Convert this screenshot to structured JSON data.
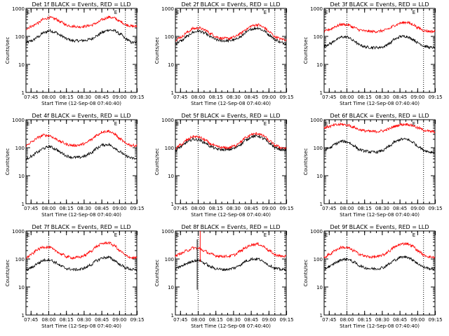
{
  "figure": {
    "xtick_labels": [
      "07:45",
      "08:00",
      "08:15",
      "08:30",
      "08:45",
      "09:00",
      "09:15"
    ],
    "ytick_labels": [
      "1",
      "10",
      "100",
      "1000"
    ],
    "ylabel": "Counts/sec",
    "xlabel": "Start Time (12-Sep-08 07:40:40)",
    "xlabel_panel8": "Start Time (12-Sep-08 07:40:40)",
    "marker_label": "E",
    "colors": {
      "events": "#000000",
      "lld": "#ff0000",
      "axes": "#000000",
      "background": "#ffffff"
    }
  },
  "chart_data": [
    {
      "type": "line",
      "title": "Det 1f BLACK = Events, RED = LLD",
      "xlim_min_after_start": [
        0,
        94
      ],
      "ylim": [
        1,
        1000
      ],
      "yscale": "log",
      "dotted_vlines_min": [
        19.3,
        84.3
      ],
      "x_min_after_start": [
        0,
        5,
        10,
        15,
        20,
        25,
        30,
        35,
        40,
        45,
        50,
        55,
        60,
        65,
        70,
        75,
        80,
        85,
        90,
        94
      ],
      "series": [
        {
          "values": [
            60,
            70,
            95,
            135,
            160,
            140,
            105,
            80,
            70,
            70,
            72,
            80,
            105,
            140,
            170,
            160,
            120,
            80,
            60,
            60
          ]
        },
        {
          "values": [
            190,
            230,
            300,
            410,
            470,
            420,
            320,
            250,
            230,
            220,
            230,
            250,
            300,
            400,
            490,
            450,
            340,
            260,
            230,
            230
          ]
        }
      ]
    },
    {
      "type": "line",
      "title": "Det 2f BLACK = Events, RED = LLD",
      "xlim_min_after_start": [
        0,
        94
      ],
      "ylim": [
        1,
        1000
      ],
      "yscale": "log",
      "dotted_vlines_min": [
        19.3,
        84.3
      ],
      "x_min_after_start": [
        0,
        5,
        10,
        15,
        20,
        25,
        30,
        35,
        40,
        45,
        50,
        55,
        60,
        65,
        70,
        75,
        80,
        85,
        90,
        94
      ],
      "series": [
        {
          "values": [
            55,
            70,
            100,
            140,
            155,
            130,
            95,
            75,
            70,
            70,
            75,
            95,
            140,
            185,
            200,
            160,
            110,
            75,
            60,
            55
          ]
        },
        {
          "values": [
            75,
            95,
            140,
            190,
            200,
            170,
            125,
            95,
            85,
            85,
            95,
            125,
            180,
            240,
            260,
            210,
            140,
            95,
            80,
            75
          ]
        }
      ]
    },
    {
      "type": "line",
      "title": "Det 3f BLACK = Events, RED = LLD",
      "xlim_min_after_start": [
        0,
        94
      ],
      "ylim": [
        1,
        1000
      ],
      "yscale": "log",
      "dotted_vlines_min": [
        19.3,
        84.3
      ],
      "x_min_after_start": [
        0,
        5,
        10,
        15,
        20,
        25,
        30,
        35,
        40,
        45,
        50,
        55,
        60,
        65,
        70,
        75,
        80,
        85,
        90,
        94
      ],
      "series": [
        {
          "values": [
            45,
            55,
            75,
            95,
            95,
            70,
            50,
            42,
            40,
            40,
            42,
            55,
            80,
            100,
            100,
            80,
            58,
            45,
            40,
            40
          ]
        },
        {
          "values": [
            150,
            180,
            230,
            270,
            260,
            210,
            170,
            155,
            150,
            150,
            160,
            190,
            250,
            300,
            320,
            270,
            200,
            160,
            150,
            150
          ]
        }
      ]
    },
    {
      "type": "line",
      "title": "Det 4f BLACK = Events, RED = LLD",
      "xlim_min_after_start": [
        0,
        94
      ],
      "ylim": [
        1,
        1000
      ],
      "yscale": "log",
      "dotted_vlines_min": [
        19.3,
        84.3
      ],
      "x_min_after_start": [
        0,
        5,
        10,
        15,
        20,
        25,
        30,
        35,
        40,
        45,
        50,
        55,
        60,
        65,
        70,
        75,
        80,
        85,
        90,
        94
      ],
      "series": [
        {
          "values": [
            40,
            50,
            70,
            95,
            110,
            90,
            65,
            50,
            45,
            45,
            50,
            65,
            95,
            125,
            130,
            100,
            70,
            50,
            42,
            40
          ]
        },
        {
          "values": [
            120,
            160,
            230,
            280,
            270,
            210,
            160,
            130,
            120,
            125,
            140,
            190,
            280,
            370,
            390,
            310,
            200,
            140,
            120,
            120
          ]
        }
      ]
    },
    {
      "type": "line",
      "title": "Det 5f BLACK = Events, RED = LLD",
      "xlim_min_after_start": [
        0,
        94
      ],
      "ylim": [
        1,
        1000
      ],
      "yscale": "log",
      "dotted_vlines_min": [
        19.3,
        84.3
      ],
      "x_min_after_start": [
        0,
        5,
        10,
        15,
        20,
        25,
        30,
        35,
        40,
        45,
        50,
        55,
        60,
        65,
        70,
        75,
        80,
        85,
        90,
        94
      ],
      "series": [
        {
          "values": [
            80,
            110,
            160,
            200,
            190,
            150,
            110,
            90,
            85,
            85,
            95,
            130,
            190,
            250,
            260,
            210,
            140,
            100,
            85,
            80
          ]
        },
        {
          "values": [
            95,
            130,
            190,
            250,
            240,
            190,
            135,
            110,
            100,
            100,
            115,
            160,
            230,
            300,
            320,
            260,
            170,
            120,
            100,
            95
          ]
        }
      ]
    },
    {
      "type": "line",
      "title": "Det 6f BLACK = Events, RED = LLD",
      "xlim_min_after_start": [
        0,
        94
      ],
      "ylim": [
        1,
        1000
      ],
      "yscale": "log",
      "dotted_vlines_min": [
        19.3,
        84.3
      ],
      "x_min_after_start": [
        0,
        5,
        10,
        15,
        20,
        25,
        30,
        35,
        40,
        45,
        50,
        55,
        60,
        65,
        70,
        75,
        80,
        85,
        90,
        94
      ],
      "series": [
        {
          "values": [
            80,
            100,
            140,
            170,
            160,
            120,
            85,
            75,
            70,
            70,
            80,
            110,
            160,
            200,
            200,
            160,
            110,
            80,
            70,
            70
          ]
        },
        {
          "values": [
            520,
            580,
            650,
            680,
            640,
            540,
            440,
            400,
            380,
            380,
            400,
            470,
            580,
            670,
            690,
            620,
            500,
            420,
            380,
            370
          ]
        }
      ]
    },
    {
      "type": "line",
      "title": "Det 7f BLACK = Events, RED = LLD",
      "xlim_min_after_start": [
        0,
        94
      ],
      "ylim": [
        1,
        1000
      ],
      "yscale": "log",
      "dotted_vlines_min": [
        19.3,
        84.3
      ],
      "x_min_after_start": [
        0,
        5,
        10,
        15,
        20,
        25,
        30,
        35,
        40,
        45,
        50,
        55,
        60,
        65,
        70,
        75,
        80,
        85,
        90,
        94
      ],
      "series": [
        {
          "values": [
            40,
            50,
            70,
            90,
            95,
            75,
            55,
            45,
            42,
            42,
            48,
            62,
            88,
            110,
            115,
            90,
            62,
            48,
            42,
            40
          ]
        },
        {
          "values": [
            110,
            150,
            220,
            270,
            260,
            200,
            150,
            120,
            110,
            115,
            135,
            190,
            280,
            360,
            380,
            300,
            190,
            130,
            110,
            110
          ]
        }
      ]
    },
    {
      "type": "line",
      "title": "Det 8f BLACK = Events, RED = LLD",
      "xlim_min_after_start": [
        0,
        94
      ],
      "ylim": [
        1,
        1000
      ],
      "yscale": "log",
      "dotted_vlines_min": [
        19.3,
        84.3
      ],
      "x_min_after_start": [
        0,
        5,
        10,
        15,
        20,
        25,
        30,
        35,
        40,
        45,
        50,
        55,
        60,
        65,
        70,
        75,
        80,
        85,
        90,
        94
      ],
      "series": [
        {
          "values": [
            45,
            55,
            70,
            85,
            90,
            70,
            52,
            45,
            42,
            43,
            48,
            62,
            85,
            100,
            100,
            80,
            58,
            46,
            42,
            42
          ]
        },
        {
          "values": [
            130,
            160,
            200,
            250,
            240,
            190,
            150,
            130,
            125,
            125,
            140,
            190,
            260,
            330,
            340,
            280,
            190,
            140,
            125,
            125
          ]
        }
      ],
      "spike_events": {
        "x_min": 18.5,
        "low": 8,
        "high": 1000
      },
      "spike_lld": {
        "x_min": 21,
        "low": 80,
        "high": 1000
      }
    },
    {
      "type": "line",
      "title": "Det 9f BLACK = Events, RED = LLD",
      "xlim_min_after_start": [
        0,
        94
      ],
      "ylim": [
        1,
        1000
      ],
      "yscale": "log",
      "dotted_vlines_min": [
        19.3,
        84.3
      ],
      "x_min_after_start": [
        0,
        5,
        10,
        15,
        20,
        25,
        30,
        35,
        40,
        45,
        50,
        55,
        60,
        65,
        70,
        75,
        80,
        85,
        90,
        94
      ],
      "series": [
        {
          "values": [
            45,
            55,
            75,
            95,
            100,
            78,
            58,
            48,
            45,
            45,
            50,
            66,
            92,
            115,
            120,
            95,
            66,
            50,
            45,
            45
          ]
        },
        {
          "values": [
            115,
            150,
            215,
            260,
            250,
            200,
            150,
            125,
            118,
            120,
            140,
            190,
            270,
            340,
            360,
            290,
            190,
            135,
            118,
            115
          ]
        }
      ]
    }
  ]
}
